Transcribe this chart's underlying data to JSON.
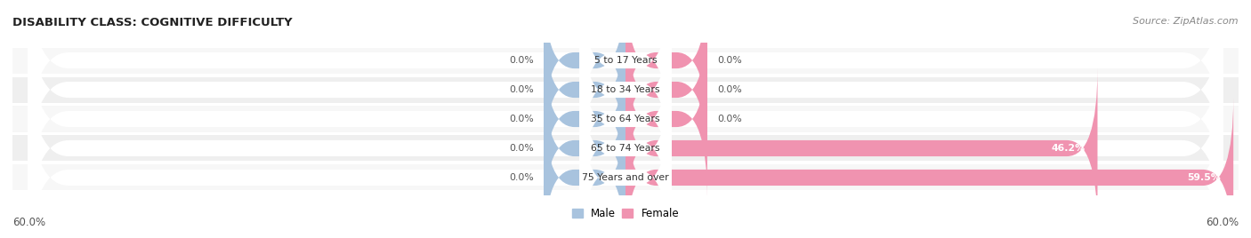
{
  "title": "DISABILITY CLASS: COGNITIVE DIFFICULTY",
  "source": "Source: ZipAtlas.com",
  "categories": [
    "5 to 17 Years",
    "18 to 34 Years",
    "35 to 64 Years",
    "65 to 74 Years",
    "75 Years and over"
  ],
  "male_values": [
    0.0,
    0.0,
    0.0,
    0.0,
    0.0
  ],
  "female_values": [
    0.0,
    0.0,
    0.0,
    46.2,
    59.5
  ],
  "male_labels": [
    "0.0%",
    "0.0%",
    "0.0%",
    "0.0%",
    "0.0%"
  ],
  "female_labels": [
    "0.0%",
    "0.0%",
    "0.0%",
    "46.2%",
    "59.5%"
  ],
  "x_max": 60.0,
  "x_min": -60.0,
  "axis_label_left": "60.0%",
  "axis_label_right": "60.0%",
  "male_color": "#a8c3de",
  "female_color": "#f093b0",
  "row_bg_odd": "#f7f7f7",
  "row_bg_even": "#efefef",
  "pill_bg": "#ffffff",
  "label_color": "#555555",
  "title_color": "#222222",
  "legend_male_color": "#a8c3de",
  "legend_female_color": "#f093b0"
}
